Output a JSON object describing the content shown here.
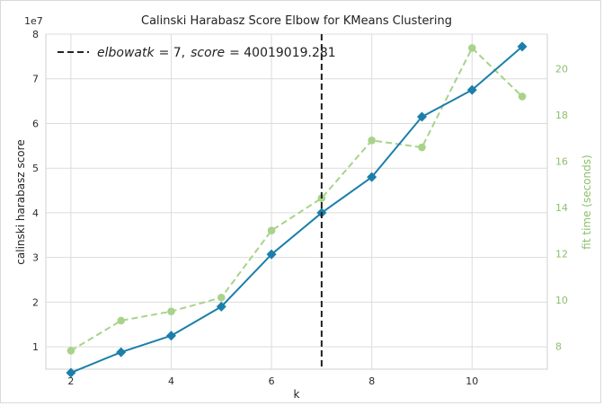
{
  "chart_data": {
    "type": "line",
    "title": "Calinski Harabasz Score Elbow for KMeans Clustering",
    "xlabel": "k",
    "ylabel": "calinski harabasz score",
    "y2label": "fit time (seconds)",
    "y_offset_label": "1e7",
    "x": [
      2,
      3,
      4,
      5,
      6,
      7,
      8,
      9,
      10,
      11
    ],
    "xlim": [
      1.5,
      11.5
    ],
    "ylim": [
      0.5,
      8.0
    ],
    "y2lim": [
      7.0,
      21.5
    ],
    "x_ticks": [
      2,
      4,
      6,
      8,
      10
    ],
    "y_ticks": [
      1,
      2,
      3,
      4,
      5,
      6,
      7,
      8
    ],
    "y2_ticks": [
      8,
      10,
      12,
      14,
      16,
      18,
      20
    ],
    "grid": true,
    "legend_position": "top-left",
    "series": [
      {
        "name": "calinski harabasz score",
        "axis": "left",
        "style": "solid",
        "marker": "diamond",
        "color": "#1b7faa",
        "values": [
          0.42,
          0.88,
          1.25,
          1.9,
          3.07,
          4.0,
          4.8,
          6.15,
          6.75,
          7.72
        ]
      },
      {
        "name": "fit time (seconds)",
        "axis": "right",
        "style": "dashed",
        "marker": "circle",
        "color": "#a7d38a",
        "values": [
          7.8,
          9.1,
          9.5,
          10.1,
          13.0,
          14.4,
          16.9,
          16.6,
          20.9,
          18.8
        ]
      }
    ],
    "elbow": {
      "k": 7,
      "label_k": "elbowatk",
      "label_k_value": "= 7,",
      "label_score": "score",
      "label_score_value": "= 40019019.281",
      "color": "#222222"
    }
  }
}
